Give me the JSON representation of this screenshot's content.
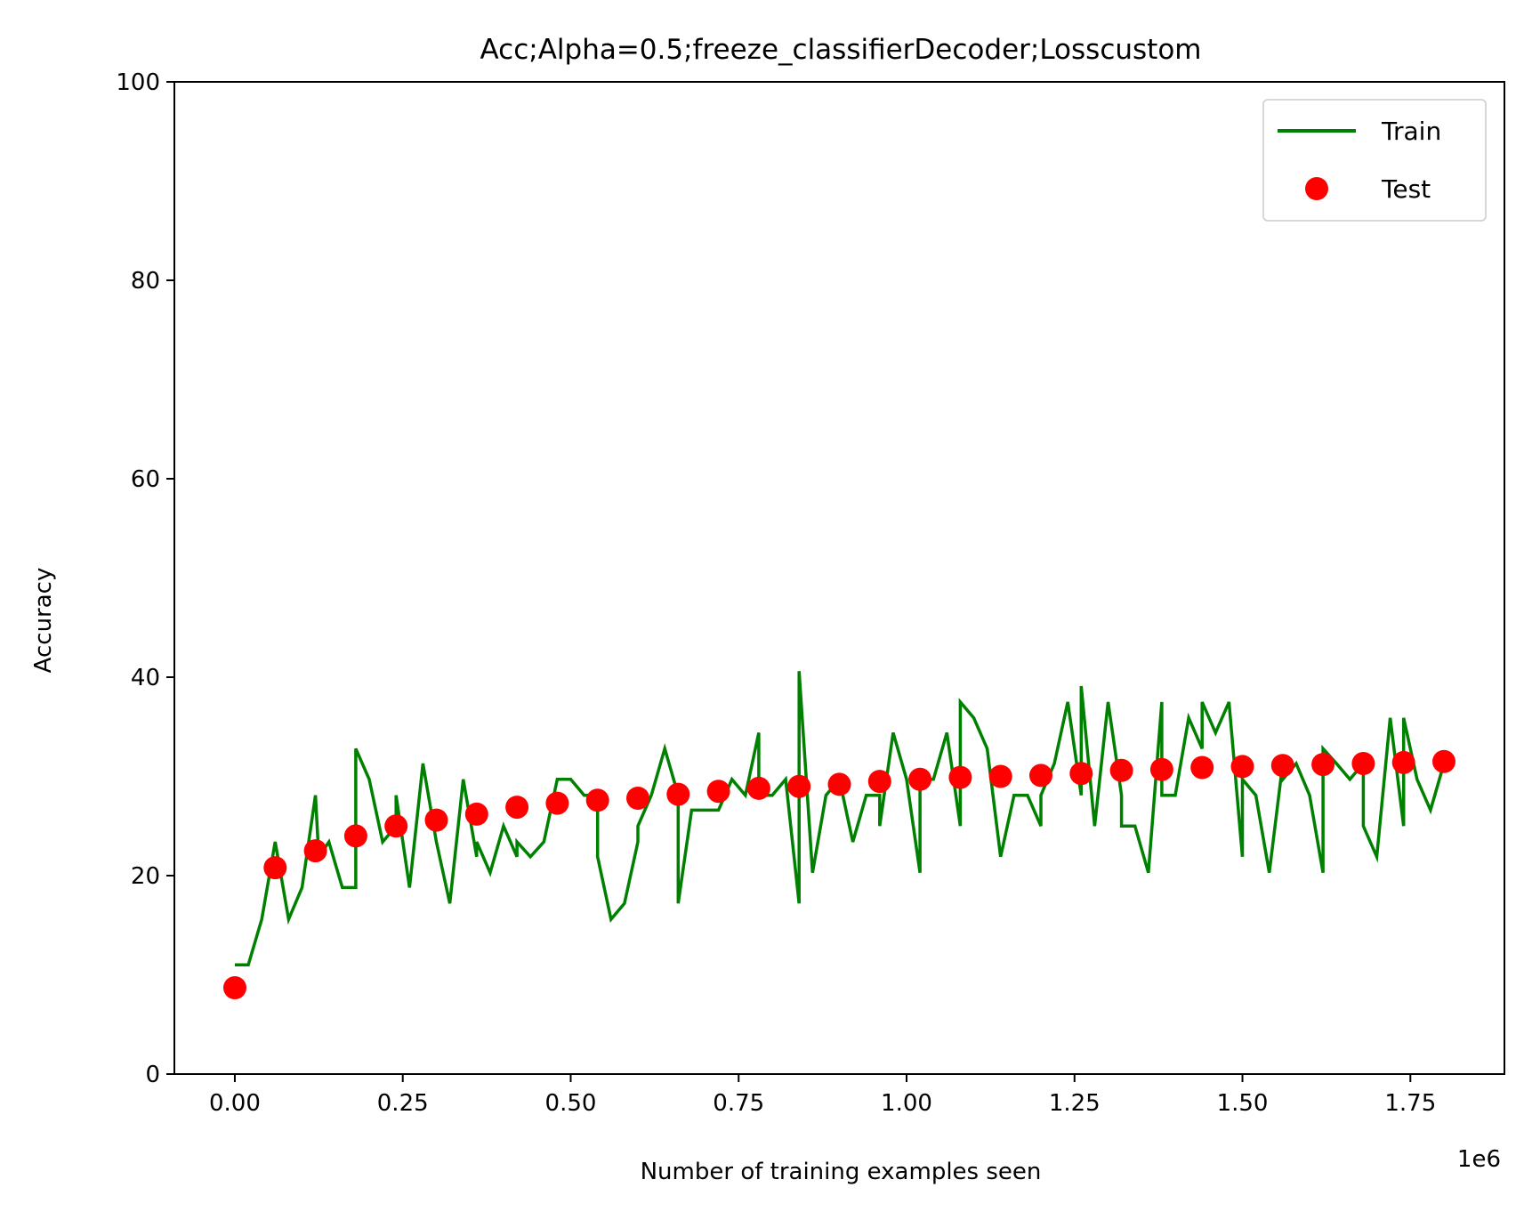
{
  "chart_data": {
    "type": "line",
    "title": "Acc;Alpha=0.5;freeze_classifierDecoder;Losscustom",
    "xlabel": "Number of training examples seen",
    "ylabel": "Accuracy",
    "x_multiplier_label": "1e6",
    "xlim": [
      -0.09,
      1.89
    ],
    "ylim": [
      0,
      100
    ],
    "x_ticks": [
      0.0,
      0.25,
      0.5,
      0.75,
      1.0,
      1.25,
      1.5,
      1.75
    ],
    "x_tick_labels": [
      "0.00",
      "0.25",
      "0.50",
      "0.75",
      "1.00",
      "1.25",
      "1.50",
      "1.75"
    ],
    "y_ticks": [
      0,
      20,
      40,
      60,
      80,
      100
    ],
    "y_tick_labels": [
      "0",
      "20",
      "40",
      "60",
      "80",
      "100"
    ],
    "grid": false,
    "legend_position": "top-right",
    "series": [
      {
        "name": "Train",
        "type": "line",
        "color": "#008000",
        "x": [
          0.0,
          0.02,
          0.04,
          0.06,
          0.08,
          0.1,
          0.12,
          0.125,
          0.14,
          0.16,
          0.18,
          0.18,
          0.2,
          0.22,
          0.24,
          0.24,
          0.26,
          0.28,
          0.3,
          0.32,
          0.34,
          0.36,
          0.36,
          0.38,
          0.4,
          0.42,
          0.42,
          0.44,
          0.46,
          0.48,
          0.5,
          0.52,
          0.54,
          0.54,
          0.56,
          0.58,
          0.6,
          0.6,
          0.62,
          0.64,
          0.66,
          0.66,
          0.68,
          0.7,
          0.72,
          0.74,
          0.76,
          0.78,
          0.78,
          0.8,
          0.82,
          0.84,
          0.84,
          0.86,
          0.88,
          0.9,
          0.92,
          0.94,
          0.96,
          0.96,
          0.98,
          1.0,
          1.02,
          1.02,
          1.04,
          1.06,
          1.08,
          1.08,
          1.1,
          1.12,
          1.14,
          1.16,
          1.18,
          1.2,
          1.2,
          1.22,
          1.24,
          1.26,
          1.26,
          1.28,
          1.3,
          1.32,
          1.32,
          1.34,
          1.36,
          1.38,
          1.38,
          1.4,
          1.42,
          1.44,
          1.44,
          1.46,
          1.48,
          1.5,
          1.5,
          1.52,
          1.54,
          1.56,
          1.56,
          1.58,
          1.6,
          1.62,
          1.62,
          1.64,
          1.66,
          1.68,
          1.68,
          1.7,
          1.72,
          1.74,
          1.74,
          1.76,
          1.78,
          1.8
        ],
        "values": [
          11.0,
          11.0,
          15.6,
          23.4,
          15.6,
          18.8,
          28.1,
          21.9,
          23.4,
          18.8,
          18.8,
          32.8,
          29.7,
          23.4,
          25.0,
          28.1,
          18.8,
          31.3,
          23.4,
          17.2,
          29.7,
          21.9,
          23.4,
          20.3,
          25.0,
          21.9,
          23.4,
          21.9,
          23.4,
          29.7,
          29.7,
          28.1,
          28.1,
          21.9,
          15.6,
          17.2,
          23.4,
          25.0,
          28.1,
          32.8,
          28.1,
          17.2,
          26.6,
          26.6,
          26.6,
          29.7,
          28.1,
          34.4,
          28.1,
          28.1,
          29.7,
          17.2,
          40.6,
          20.3,
          28.1,
          29.7,
          23.4,
          28.1,
          28.1,
          25.0,
          34.4,
          29.7,
          20.3,
          29.7,
          29.7,
          34.4,
          25.0,
          37.5,
          35.9,
          32.8,
          21.9,
          28.1,
          28.1,
          25.0,
          28.1,
          31.3,
          37.5,
          28.1,
          39.1,
          25.0,
          37.5,
          28.1,
          25.0,
          25.0,
          20.3,
          37.5,
          28.1,
          28.1,
          35.9,
          32.8,
          37.5,
          34.4,
          37.5,
          21.9,
          29.7,
          28.1,
          20.3,
          31.3,
          29.7,
          31.3,
          28.1,
          20.3,
          32.8,
          31.3,
          29.7,
          31.3,
          25.0,
          21.9,
          35.9,
          25.0,
          35.9,
          29.7,
          26.6,
          31.3
        ]
      },
      {
        "name": "Test",
        "type": "scatter",
        "color": "#ff0000",
        "x": [
          0.0,
          0.06,
          0.12,
          0.18,
          0.24,
          0.3,
          0.36,
          0.42,
          0.48,
          0.54,
          0.6,
          0.66,
          0.72,
          0.78,
          0.84,
          0.9,
          0.96,
          1.02,
          1.08,
          1.14,
          1.2,
          1.26,
          1.32,
          1.38,
          1.44,
          1.5,
          1.56,
          1.62,
          1.68,
          1.74,
          1.8
        ],
        "values": [
          8.7,
          20.8,
          22.5,
          24.0,
          25.0,
          25.6,
          26.2,
          26.9,
          27.3,
          27.6,
          27.8,
          28.2,
          28.5,
          28.8,
          29.0,
          29.2,
          29.5,
          29.7,
          29.9,
          30.0,
          30.1,
          30.3,
          30.6,
          30.7,
          30.9,
          31.0,
          31.1,
          31.2,
          31.3,
          31.4,
          31.5
        ]
      }
    ]
  }
}
